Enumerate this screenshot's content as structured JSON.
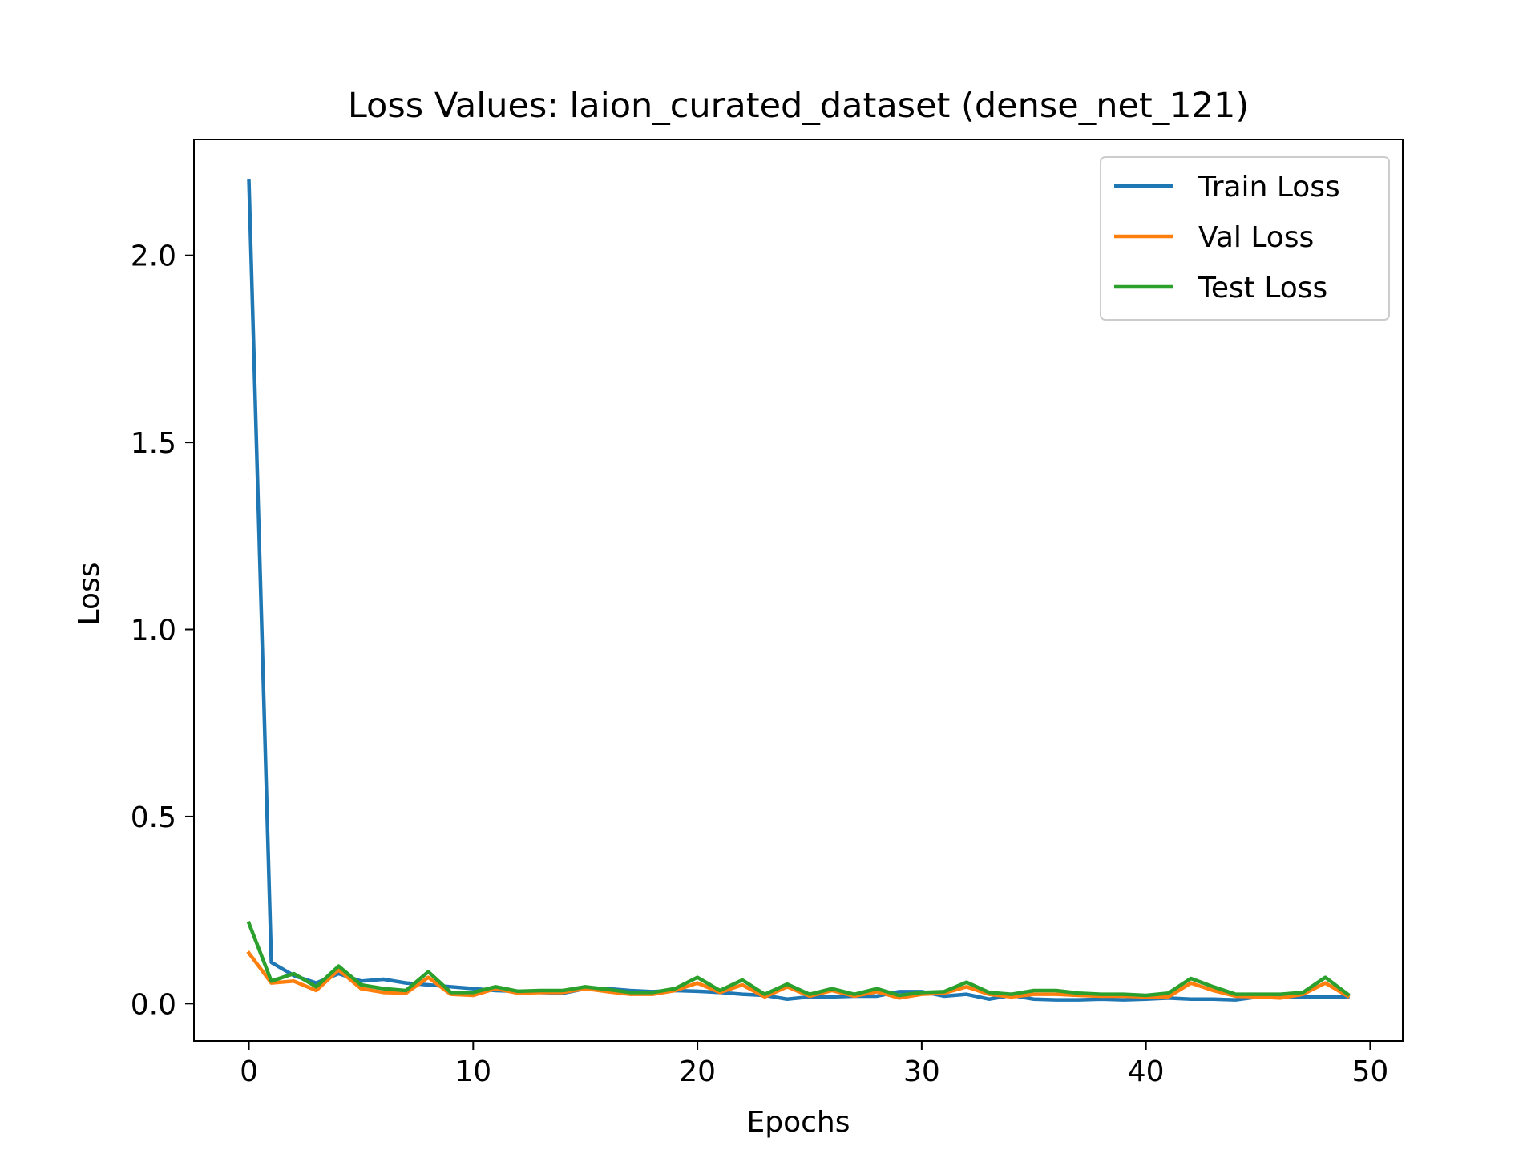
{
  "chart_data": {
    "type": "line",
    "title": "Loss Values: laion_curated_dataset (dense_net_121)",
    "xlabel": "Epochs",
    "ylabel": "Loss",
    "xlim": [
      -2.45,
      51.45
    ],
    "ylim": [
      -0.1,
      2.31
    ],
    "xticks": [
      0,
      10,
      20,
      30,
      40,
      50
    ],
    "xtick_labels": [
      "0",
      "10",
      "20",
      "30",
      "40",
      "50"
    ],
    "yticks": [
      0.0,
      0.5,
      1.0,
      1.5,
      2.0
    ],
    "ytick_labels": [
      "0.0",
      "0.5",
      "1.0",
      "1.5",
      "2.0"
    ],
    "grid": false,
    "legend_position": "top-right",
    "x": [
      0,
      1,
      2,
      3,
      4,
      5,
      6,
      7,
      8,
      9,
      10,
      11,
      12,
      13,
      14,
      15,
      16,
      17,
      18,
      19,
      20,
      21,
      22,
      23,
      24,
      25,
      26,
      27,
      28,
      29,
      30,
      31,
      32,
      33,
      34,
      35,
      36,
      37,
      38,
      39,
      40,
      41,
      42,
      43,
      44,
      45,
      46,
      47,
      48,
      49
    ],
    "series": [
      {
        "name": "Train Loss",
        "color": "#1f77b4",
        "values": [
          2.2,
          0.11,
          0.075,
          0.055,
          0.08,
          0.06,
          0.065,
          0.055,
          0.05,
          0.045,
          0.04,
          0.035,
          0.033,
          0.03,
          0.028,
          0.04,
          0.04,
          0.035,
          0.032,
          0.035,
          0.033,
          0.03,
          0.025,
          0.022,
          0.012,
          0.018,
          0.018,
          0.02,
          0.02,
          0.032,
          0.032,
          0.02,
          0.025,
          0.012,
          0.022,
          0.012,
          0.01,
          0.01,
          0.012,
          0.01,
          0.012,
          0.015,
          0.012,
          0.012,
          0.01,
          0.018,
          0.016,
          0.018,
          0.018,
          0.018
        ]
      },
      {
        "name": "Val Loss",
        "color": "#ff7f0e",
        "values": [
          0.135,
          0.055,
          0.06,
          0.035,
          0.09,
          0.04,
          0.03,
          0.028,
          0.07,
          0.025,
          0.022,
          0.04,
          0.028,
          0.03,
          0.03,
          0.04,
          0.032,
          0.025,
          0.025,
          0.035,
          0.055,
          0.03,
          0.05,
          0.018,
          0.045,
          0.02,
          0.035,
          0.02,
          0.032,
          0.015,
          0.025,
          0.028,
          0.045,
          0.025,
          0.018,
          0.025,
          0.025,
          0.022,
          0.02,
          0.02,
          0.018,
          0.018,
          0.055,
          0.035,
          0.02,
          0.018,
          0.015,
          0.025,
          0.055,
          0.02
        ]
      },
      {
        "name": "Test Loss",
        "color": "#2ca02c",
        "values": [
          0.215,
          0.06,
          0.08,
          0.045,
          0.1,
          0.05,
          0.04,
          0.035,
          0.085,
          0.03,
          0.03,
          0.045,
          0.033,
          0.035,
          0.035,
          0.045,
          0.038,
          0.03,
          0.03,
          0.04,
          0.07,
          0.035,
          0.063,
          0.025,
          0.052,
          0.025,
          0.04,
          0.025,
          0.04,
          0.022,
          0.03,
          0.032,
          0.057,
          0.03,
          0.025,
          0.035,
          0.035,
          0.028,
          0.025,
          0.025,
          0.022,
          0.028,
          0.067,
          0.045,
          0.025,
          0.025,
          0.025,
          0.03,
          0.07,
          0.025
        ]
      }
    ]
  }
}
